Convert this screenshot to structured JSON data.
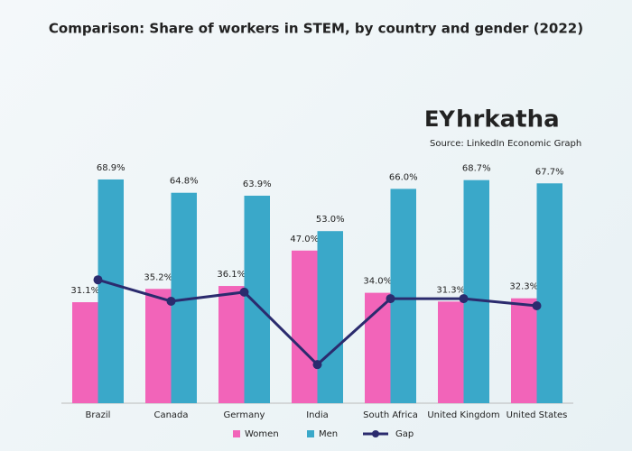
{
  "chart_data": {
    "type": "bar",
    "title": "Comparison: Share of workers in STEM, by country and gender (2022)",
    "source": "Source: LinkedIn Economic Graph",
    "logo": [
      "EY",
      "hrkatha"
    ],
    "categories": [
      "Brazil",
      "Canada",
      "Germany",
      "India",
      "South Africa",
      "United Kingdom",
      "United States"
    ],
    "series": [
      {
        "name": "Women",
        "color": "#f264b9",
        "kind": "bar",
        "values": [
          31.1,
          35.2,
          36.1,
          47.0,
          34.0,
          31.3,
          32.3
        ],
        "value_labels": [
          "31.1%",
          "35.2%",
          "36.1%",
          "47.0%",
          "34.0%",
          "31.3%",
          "32.3%"
        ]
      },
      {
        "name": "Men",
        "color": "#3aa8c9",
        "kind": "bar",
        "values": [
          68.9,
          64.8,
          63.9,
          53.0,
          66.0,
          68.7,
          67.7
        ],
        "value_labels": [
          "68.9%",
          "64.8%",
          "63.9%",
          "53.0%",
          "66.0%",
          "68.7%",
          "67.7%"
        ]
      },
      {
        "name": "Gap",
        "color": "#2b2b6e",
        "kind": "line",
        "values": [
          38.0,
          31.4,
          34.2,
          11.9,
          32.2,
          32.2,
          30.0
        ]
      }
    ],
    "ylim": [
      0,
      100
    ],
    "legend": "bottom"
  }
}
